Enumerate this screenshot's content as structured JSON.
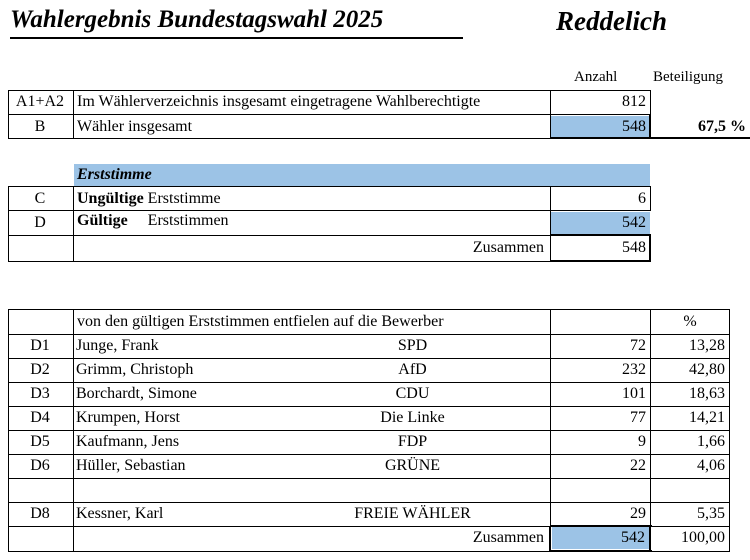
{
  "header": {
    "title": "Wahlergebnis Bundestagswahl 2025",
    "place": "Reddelich",
    "col_count": "Anzahl",
    "col_turnout": "Beteiligung"
  },
  "voters": {
    "rows": [
      {
        "code": "A1+A2",
        "label": "Im Wählerverzeichnis insgesamt eingetragene Wahlberechtigte",
        "value": "812"
      },
      {
        "code": "B",
        "label": "Wähler insgesamt",
        "value": "548",
        "turnout": "67,5 %"
      }
    ]
  },
  "erststimme": {
    "section_title": "Erststimme",
    "invalid": {
      "code": "C",
      "label_bold": "Ungültige",
      "label_rest": "Erststimme",
      "value": "6"
    },
    "valid": {
      "code": "D",
      "label_bold": "Gültige",
      "label_rest": "Erststimmen",
      "value": "542"
    },
    "total": {
      "label": "Zusammen",
      "value": "548"
    }
  },
  "candidates": {
    "header_label": "von den  gültigen Erststimmen entfielen auf die Bewerber",
    "header_pct": "%",
    "rows": [
      {
        "code": "D1",
        "name": "Junge, Frank",
        "party": "SPD",
        "votes": "72",
        "pct": "13,28"
      },
      {
        "code": "D2",
        "name": "Grimm, Christoph",
        "party": "AfD",
        "votes": "232",
        "pct": "42,80"
      },
      {
        "code": "D3",
        "name": "Borchardt, Simone",
        "party": "CDU",
        "votes": "101",
        "pct": "18,63"
      },
      {
        "code": "D4",
        "name": "Krumpen, Horst",
        "party": "Die Linke",
        "votes": "77",
        "pct": "14,21"
      },
      {
        "code": "D5",
        "name": "Kaufmann, Jens",
        "party": "FDP",
        "votes": "9",
        "pct": "1,66"
      },
      {
        "code": "D6",
        "name": "Hüller, Sebastian",
        "party": "GRÜNE",
        "votes": "22",
        "pct": "4,06"
      },
      {
        "code": "",
        "name": "",
        "party": "",
        "votes": "",
        "pct": ""
      },
      {
        "code": "D8",
        "name": "Kessner, Karl",
        "party": "FREIE WÄHLER",
        "votes": "29",
        "pct": "5,35"
      }
    ],
    "total": {
      "label": "Zusammen",
      "votes": "542",
      "pct": "100,00"
    }
  },
  "colors": {
    "highlight": "#9cc3e6"
  }
}
